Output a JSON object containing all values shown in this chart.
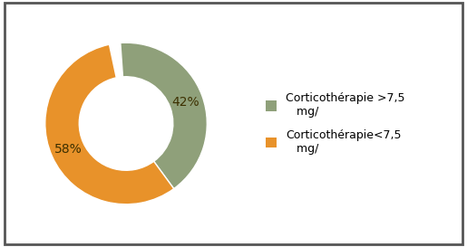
{
  "slices": [
    42,
    58
  ],
  "colors": [
    "#8fA07A",
    "#E8922A"
  ],
  "labels": [
    "42%",
    "58%"
  ],
  "legend_labels": [
    "Corticothérapie >7,5\n   mg/",
    "Corticothérapie<7,5\n   mg/"
  ],
  "background_color": "#ffffff",
  "donut_width": 0.42,
  "label_fontsize": 10,
  "legend_fontsize": 9,
  "border_color": "#555555",
  "label_color": "#3d3000"
}
